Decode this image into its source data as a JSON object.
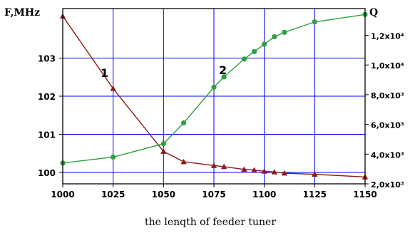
{
  "chart_data": {
    "type": "line",
    "title": "",
    "xlabel": "the lenqth of feeder tuner",
    "ylabel_left": "F,MHz",
    "ylabel_right": "Q",
    "x_ticks": [
      "1000",
      "1025",
      "1050",
      "1075",
      "1100",
      "1125",
      "1150"
    ],
    "x_lim": [
      1000,
      1150
    ],
    "y_left_ticks": [
      "100",
      "101",
      "102",
      "103"
    ],
    "y_left_lim": [
      99.7,
      104.3
    ],
    "y_right_ticks": [
      "2,0x10³",
      "4,0x10³",
      "6,0x10³",
      "8,0x10³",
      "1,0x10⁴",
      "1,2x10⁴"
    ],
    "y_right_values": [
      2000,
      4000,
      6000,
      8000,
      10000,
      12000
    ],
    "y_right_lim": [
      2000,
      13800
    ],
    "grid": true,
    "colors": {
      "series1": "#8b1a1a",
      "series2": "#2e9e3e",
      "grid": "#0000ff",
      "axes": "#000000"
    },
    "series": [
      {
        "name": "1",
        "axis": "left",
        "marker": "triangle",
        "x": [
          1000,
          1025,
          1050,
          1060,
          1075,
          1080,
          1090,
          1095,
          1100,
          1105,
          1110,
          1125,
          1150
        ],
        "y": [
          104.1,
          102.2,
          100.55,
          100.28,
          100.18,
          100.15,
          100.08,
          100.06,
          100.03,
          100.01,
          99.98,
          99.95,
          99.88
        ]
      },
      {
        "name": "2",
        "axis": "right",
        "marker": "circle",
        "x": [
          1000,
          1025,
          1050,
          1060,
          1075,
          1080,
          1090,
          1095,
          1100,
          1105,
          1110,
          1125,
          1150
        ],
        "y": [
          3400,
          3800,
          4700,
          6100,
          8500,
          9200,
          10400,
          10900,
          11400,
          11900,
          12200,
          12900,
          13400
        ]
      }
    ],
    "annotations": [
      {
        "text": "1",
        "series": "1"
      },
      {
        "text": "2",
        "series": "2"
      }
    ]
  }
}
